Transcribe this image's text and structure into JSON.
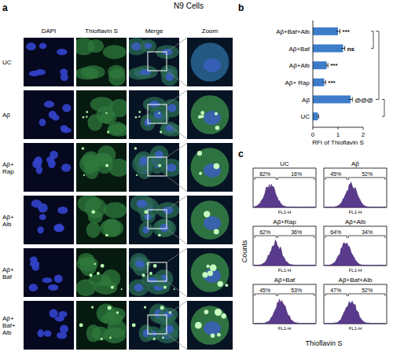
{
  "figure_title": "N9 Cells",
  "panel_a": {
    "label": "a",
    "columns": [
      "DAPI",
      "Thioflavin S",
      "Merge",
      "Zoom"
    ],
    "rows": [
      [
        "UC"
      ],
      [
        "Aβ"
      ],
      [
        "Aβ+",
        "Rap"
      ],
      [
        "Aβ+",
        "Alb"
      ],
      [
        "Aβ+",
        "Baf"
      ],
      [
        "Aβ+",
        "Baf+",
        "Alb"
      ]
    ]
  },
  "panel_b": {
    "label": "b"
  },
  "chart_data": {
    "type": "bar",
    "orientation": "horizontal",
    "categories": [
      "Aβ+Baf+Alb",
      "Aβ+Baf",
      "Aβ+Alb",
      "Aβ+ Rap",
      "Aβ",
      "UC"
    ],
    "values": [
      1.0,
      1.2,
      0.55,
      0.45,
      1.5,
      0.2
    ],
    "errors": [
      0.08,
      0.07,
      0.05,
      0.06,
      0.07,
      0.03
    ],
    "annotations": [
      "***",
      "ns",
      "***",
      "***",
      "@@@",
      null
    ],
    "color": "#3d7cc9",
    "xlabel": "RFI of Thioflavin S",
    "xlim": [
      0,
      2
    ],
    "xticks": [
      0,
      1,
      2
    ]
  },
  "panel_c": {
    "label": "c",
    "x_label": "Thioflavin S",
    "y_label": "Counts",
    "axis_label": "FL1-H",
    "plots": [
      {
        "title": "UC",
        "low": "82%",
        "high": "16%"
      },
      {
        "title": "Aβ",
        "low": "45%",
        "high": "52%"
      },
      {
        "title": "Aβ+Rap",
        "low": "62%",
        "high": "36%"
      },
      {
        "title": "Aβ+Alb",
        "low": "64%",
        "high": "34%"
      },
      {
        "title": "Aβ+Baf",
        "low": "45%",
        "high": "53%"
      },
      {
        "title": "Aβ+Baf+Alb",
        "low": "47%",
        "high": "52%"
      }
    ]
  }
}
